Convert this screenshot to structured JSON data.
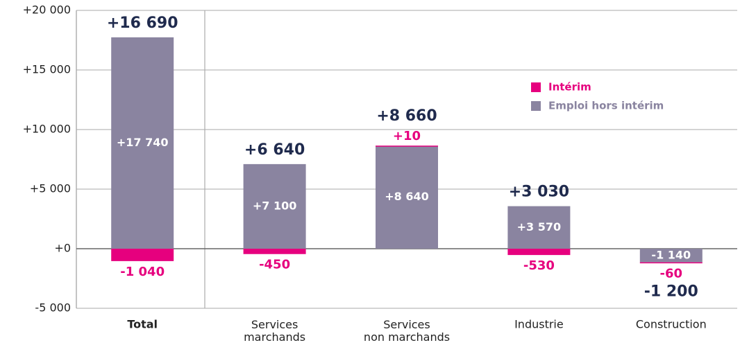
{
  "chart_data": {
    "type": "stacked_bar",
    "categories": [
      "Total",
      "Services marchands",
      "Services non marchands",
      "Industrie",
      "Construction"
    ],
    "series": [
      {
        "name": "Intérim",
        "color": "#e6007e",
        "values": [
          -1040,
          -450,
          10,
          -530,
          -60
        ],
        "value_labels": [
          "-1 040",
          "-450",
          "+10",
          "-530",
          "-60"
        ]
      },
      {
        "name": "Emploi hors intérim",
        "color": "#8a84a0",
        "values": [
          17740,
          7100,
          8640,
          3570,
          -1140
        ],
        "value_labels": [
          "+17 740",
          "+7 100",
          "+8 640",
          "+3 570",
          "-1 140"
        ]
      }
    ],
    "totals": [
      16690,
      6640,
      8660,
      3030,
      -1200
    ],
    "total_labels": [
      "+16 690",
      "+6 640",
      "+8 660",
      "+3 030",
      "-1 200"
    ],
    "ylim": [
      -5000,
      20000
    ],
    "yticks": [
      {
        "value": -5000,
        "label": "-5 000"
      },
      {
        "value": 0,
        "label": "+0"
      },
      {
        "value": 5000,
        "label": "+5 000"
      },
      {
        "value": 10000,
        "label": "+10 000"
      },
      {
        "value": 15000,
        "label": "+15 000"
      },
      {
        "value": 20000,
        "label": "+20 000"
      }
    ],
    "grid": true
  }
}
